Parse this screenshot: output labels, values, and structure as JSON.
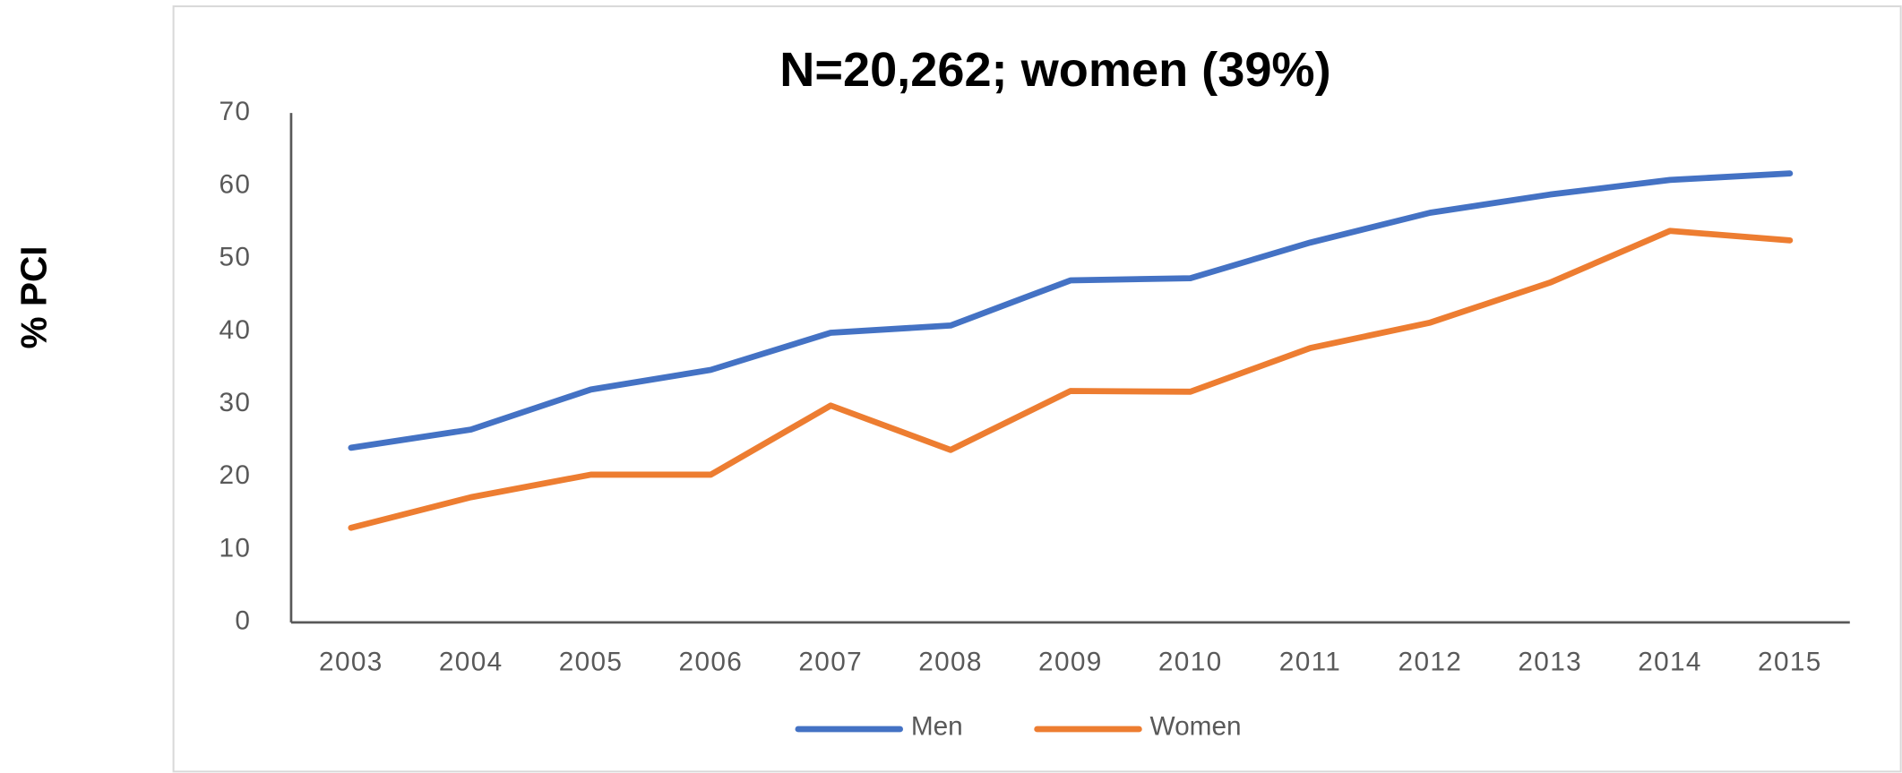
{
  "chart_data": {
    "type": "line",
    "title": "N=20,262; women (39%)",
    "ylabel": "% PCI",
    "categories": [
      "2003",
      "2004",
      "2005",
      "2006",
      "2007",
      "2008",
      "2009",
      "2010",
      "2011",
      "2012",
      "2013",
      "2014",
      "2015"
    ],
    "series": [
      {
        "name": "Men",
        "color": "#4472c4",
        "values": [
          24,
          26.5,
          32,
          34.7,
          39.8,
          40.8,
          47,
          47.3,
          52.2,
          56.3,
          58.8,
          60.8,
          61.7
        ]
      },
      {
        "name": "Women",
        "color": "#ed7d31",
        "values": [
          13,
          17.2,
          20.3,
          20.3,
          29.8,
          23.7,
          31.8,
          31.7,
          37.7,
          41.2,
          46.7,
          53.8,
          52.5
        ]
      }
    ],
    "ylim": [
      0,
      70
    ],
    "yticks": [
      0,
      10,
      20,
      30,
      40,
      50,
      60,
      70
    ],
    "grid": false,
    "legend": "bottom"
  }
}
